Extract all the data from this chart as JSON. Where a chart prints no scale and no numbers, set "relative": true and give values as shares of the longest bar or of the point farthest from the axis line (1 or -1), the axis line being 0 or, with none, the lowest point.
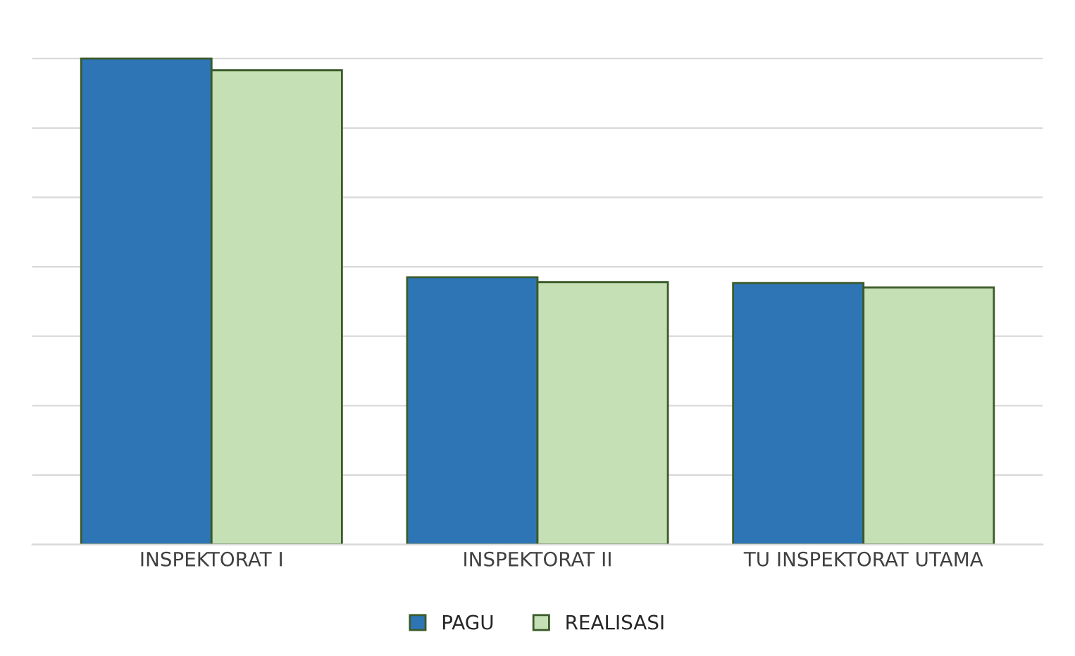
{
  "chart_data": {
    "type": "bar",
    "relative": true,
    "categories": [
      "INSPEKTORAT I",
      "INSPEKTORAT II",
      "TU INSPEKTORAT UTAMA"
    ],
    "series": [
      {
        "name": "PAGU",
        "color": "#2e75b6",
        "values": [
          1,
          0.55,
          0.538
        ]
      },
      {
        "name": "REALISASI",
        "color": "#c5e0b4",
        "values": [
          0.976,
          0.54,
          0.529
        ]
      }
    ],
    "grid": "y",
    "legend": "bottom",
    "tick_labels": "x"
  }
}
